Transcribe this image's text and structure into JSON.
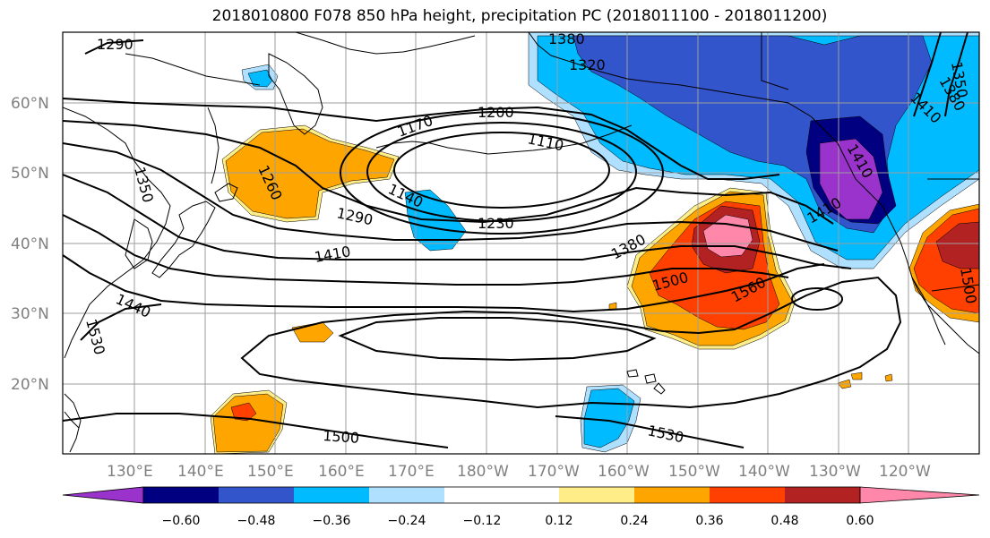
{
  "title": "2018010800 F078 850 hPa height, precipitation PC (2018011100 - 2018011200)",
  "latitude_labels": [
    "60°N",
    "50°N",
    "40°N",
    "30°N",
    "20°N"
  ],
  "longitude_labels": [
    "130°E",
    "140°E",
    "150°E",
    "160°E",
    "170°E",
    "180°W",
    "170°W",
    "160°W",
    "150°W",
    "140°W",
    "130°W",
    "120°W"
  ],
  "contour_labels": [
    "1290",
    "1380",
    "1320",
    "1350",
    "1380",
    "1410",
    "1200",
    "1170",
    "1110",
    "1260",
    "1350",
    "1140",
    "1290",
    "1230",
    "1410",
    "1380",
    "1500",
    "1560",
    "1410",
    "1440",
    "1530",
    "1500",
    "1530",
    "1500",
    "1410"
  ],
  "colorbar": {
    "tick_labels": [
      "−0.60",
      "−0.48",
      "−0.36",
      "−0.24",
      "−0.12",
      "0.12",
      "0.24",
      "0.36",
      "0.48",
      "0.60"
    ],
    "colors": [
      "#9933cc",
      "#000080",
      "#3355cc",
      "#00bbff",
      "#b0e0ff",
      "#ffffff",
      "#ffee88",
      "#ffa500",
      "#ff4000",
      "#b22222",
      "#ff88aa"
    ]
  },
  "colors": {
    "negative_purple": "#9933cc",
    "negative_navy": "#000080",
    "negative_blue": "#3355cc",
    "negative_cyan": "#00bbff",
    "negative_light": "#b0e0ff",
    "positive_yellow": "#ffee88",
    "positive_orange": "#ffa500",
    "positive_redorange": "#ff4000",
    "positive_darkred": "#b22222",
    "positive_pink": "#ff88aa"
  }
}
